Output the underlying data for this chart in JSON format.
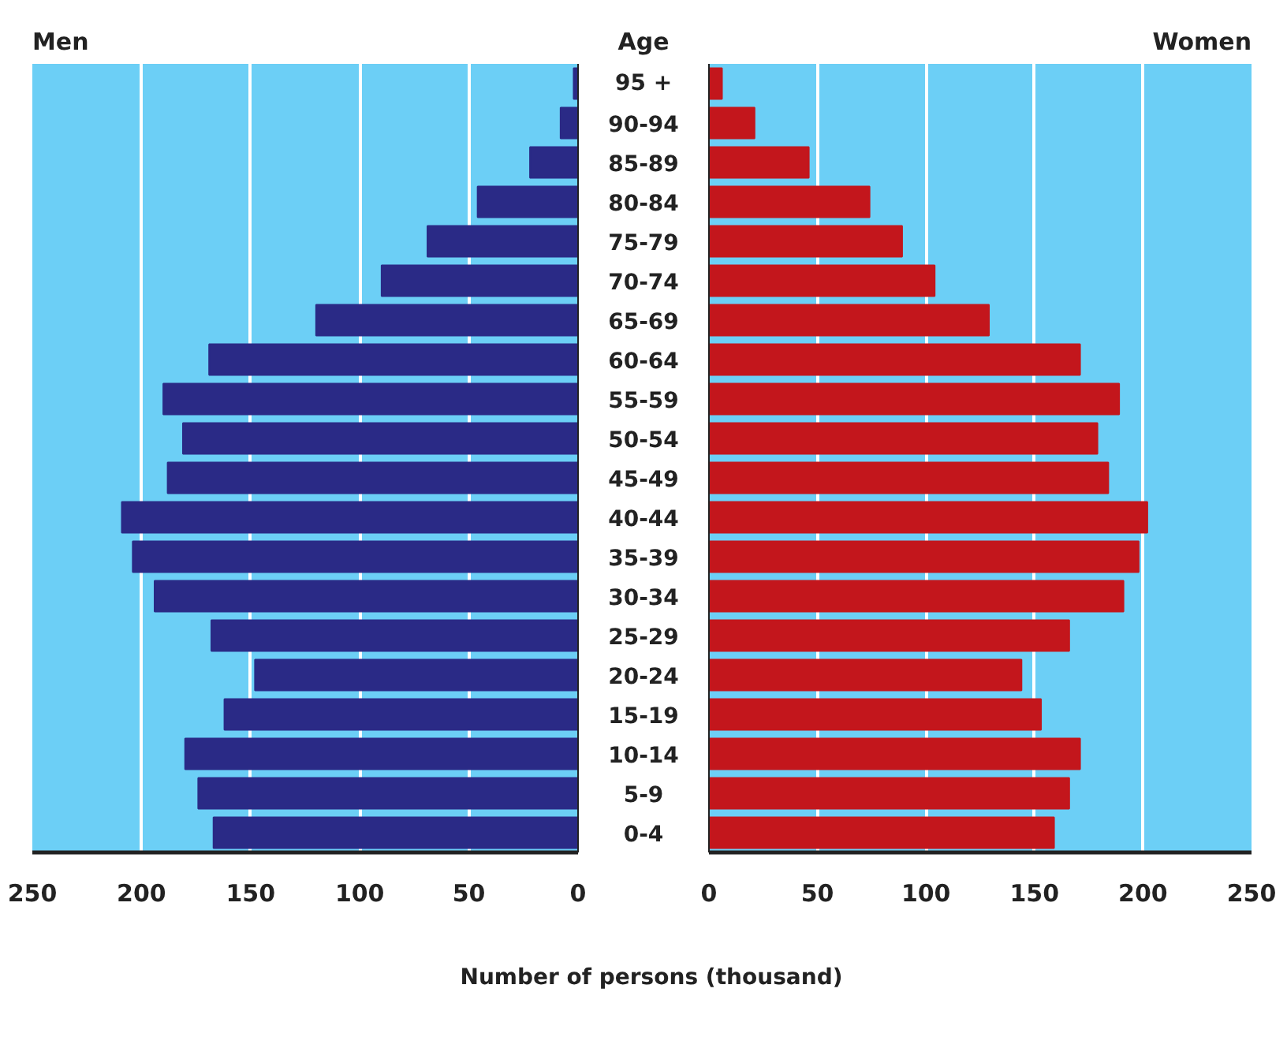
{
  "chart_data": [
    {
      "type": "bar",
      "orientation": "horizontal",
      "categories": [
        null,
        null,
        null,
        null,
        null,
        null,
        null,
        null,
        null,
        null,
        null,
        null,
        null,
        null,
        null,
        null,
        null,
        null,
        null,
        null
      ],
      "series": [
        {
          "name": "Men",
          "color": "#2a2a86",
          "values": [
            2,
            8,
            22,
            46,
            69,
            90,
            120,
            169,
            190,
            181,
            188,
            209,
            204,
            194,
            168,
            148,
            162,
            180,
            174,
            167
          ]
        }
      ],
      "xlim": [
        250,
        0
      ],
      "xticks": [
        250,
        200,
        150,
        100,
        50,
        0
      ],
      "grid": "x",
      "tick_labels": "x"
    },
    {
      "type": "bar",
      "orientation": "horizontal",
      "categories": [
        "95 +",
        "90-94",
        "85-89",
        "80-84",
        "75-79",
        "70-74",
        "65-69",
        "60-64",
        "55-59",
        "50-54",
        "45-49",
        "40-44",
        "35-39",
        "30-34",
        "25-29",
        "20-24",
        "15-19",
        "10-14",
        "5-9",
        "0-4"
      ],
      "series": [
        {
          "name": "Women",
          "color": "#c3161c",
          "values": [
            6,
            21,
            46,
            74,
            89,
            104,
            129,
            171,
            189,
            179,
            184,
            202,
            198,
            191,
            166,
            144,
            153,
            171,
            166,
            159
          ]
        }
      ],
      "ylabel": "Age",
      "xlabel": "Number of persons (thousand)",
      "xlim": [
        0,
        250
      ],
      "xticks": [
        0,
        50,
        100,
        150,
        200,
        250
      ],
      "grid": "x",
      "tick_labels": "x"
    }
  ]
}
